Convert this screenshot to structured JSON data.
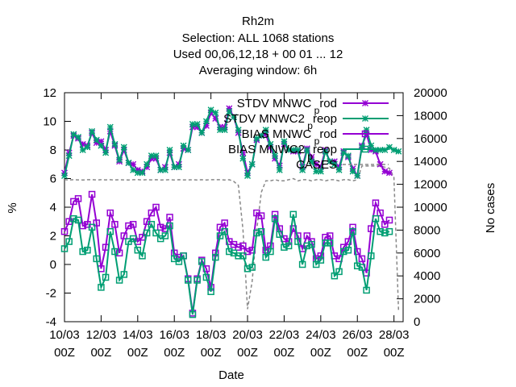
{
  "chart_data": {
    "type": "line",
    "title_lines": [
      "Rh2m",
      "Selection: ALL    1068 stations",
      "Used  00,06,12,18 + 00 01 ... 12",
      "Averaging window:  6h"
    ],
    "xlabel": "Date",
    "ylabel": "%",
    "y2label": "No cases",
    "xlim": [
      0,
      18.5
    ],
    "ylim": [
      -4,
      12
    ],
    "y2lim": [
      0,
      20000
    ],
    "x_ticks": [
      {
        "x": 0,
        "line1": "10/03",
        "line2": "00Z"
      },
      {
        "x": 2,
        "line1": "12/03",
        "line2": "00Z"
      },
      {
        "x": 4,
        "line1": "14/03",
        "line2": "00Z"
      },
      {
        "x": 6,
        "line1": "16/03",
        "line2": "00Z"
      },
      {
        "x": 8,
        "line1": "18/03",
        "line2": "00Z"
      },
      {
        "x": 10,
        "line1": "20/03",
        "line2": "00Z"
      },
      {
        "x": 12,
        "line1": "22/03",
        "line2": "00Z"
      },
      {
        "x": 14,
        "line1": "24/03",
        "line2": "00Z"
      },
      {
        "x": 16,
        "line1": "26/03",
        "line2": "00Z"
      },
      {
        "x": 18,
        "line1": "28/03",
        "line2": "00Z"
      }
    ],
    "y_ticks": [
      -4,
      -2,
      0,
      2,
      4,
      6,
      8,
      10,
      12
    ],
    "y2_ticks": [
      0,
      2000,
      4000,
      6000,
      8000,
      10000,
      12000,
      14000,
      16000,
      18000,
      20000
    ],
    "x_unit_note": "days since 10/03 00Z",
    "series": [
      {
        "name": "STDV MNWC_prod",
        "legend_main": "STDV MNWC",
        "legend_sub": "p",
        "legend_tail": "rod",
        "color": "#9400d3",
        "marker": "star",
        "axis": "y1",
        "x": [
          0,
          0.25,
          0.5,
          0.75,
          1,
          1.25,
          1.5,
          1.75,
          2,
          2.25,
          2.5,
          2.75,
          3,
          3.25,
          3.5,
          3.75,
          4,
          4.25,
          4.5,
          4.75,
          5,
          5.25,
          5.5,
          5.75,
          6,
          6.25,
          6.5,
          6.75,
          7,
          7.25,
          7.5,
          7.75,
          8,
          8.25,
          8.5,
          8.75,
          9,
          9.25,
          9.5,
          9.75,
          10,
          10.25,
          10.5,
          10.75,
          11,
          11.25,
          11.5,
          11.75,
          12,
          12.25,
          12.5,
          12.75,
          13,
          13.25,
          13.5,
          13.75,
          14,
          14.25,
          14.5,
          14.75,
          15,
          15.25,
          15.5,
          15.75,
          16,
          16.25,
          16.5,
          16.75,
          17,
          17.25,
          17.5,
          17.75,
          18,
          18.25,
          18.5,
          18.75
        ],
        "values": [
          6.4,
          7.8,
          9.0,
          8.8,
          8.4,
          8.3,
          9.2,
          8.5,
          8.6,
          8.0,
          9.3,
          8.3,
          7.2,
          8.0,
          7.1,
          7.0,
          6.6,
          6.5,
          6.8,
          7.4,
          7.4,
          6.6,
          6.8,
          7.8,
          6.8,
          7.0,
          8.1,
          8.0,
          9.6,
          9.6,
          9.2,
          9.7,
          10.6,
          10.2,
          9.6,
          9.6,
          10.9,
          10.3,
          9.2,
          7.8,
          6.4,
          7.0,
          8.7,
          9.0,
          9.1,
          8.2,
          7.4,
          6.9,
          8.4,
          8.0,
          7.9,
          7.9,
          6.8,
          8.1,
          7.5,
          7.0,
          6.8,
          8.0,
          7.2,
          7.2,
          6.8,
          7.9,
          7.5,
          6.7,
          6.2,
          8.3,
          9.1,
          8.0,
          7.9,
          7.0,
          6.5,
          6.4,
          null,
          null,
          null,
          null
        ]
      },
      {
        "name": "STDV MNWC2_preop",
        "legend_main": "STDV MNWC2",
        "legend_sub": "p",
        "legend_tail": "reop",
        "color": "#009e73",
        "marker": "star",
        "axis": "y1",
        "x": [
          0,
          0.25,
          0.5,
          0.75,
          1,
          1.25,
          1.5,
          1.75,
          2,
          2.25,
          2.5,
          2.75,
          3,
          3.25,
          3.5,
          3.75,
          4,
          4.25,
          4.5,
          4.75,
          5,
          5.25,
          5.5,
          5.75,
          6,
          6.25,
          6.5,
          6.75,
          7,
          7.25,
          7.5,
          7.75,
          8,
          8.25,
          8.5,
          8.75,
          9,
          9.25,
          9.5,
          9.75,
          10,
          10.25,
          10.5,
          10.75,
          11,
          11.25,
          11.5,
          11.75,
          12,
          12.25,
          12.5,
          12.75,
          13,
          13.25,
          13.5,
          13.75,
          14,
          14.25,
          14.5,
          14.75,
          15,
          15.25,
          15.5,
          15.75,
          16,
          16.25,
          16.5,
          16.75,
          17,
          17.25,
          17.5,
          17.75,
          18,
          18.25,
          18.5,
          18.75
        ],
        "values": [
          6.2,
          7.6,
          9.1,
          8.9,
          8.0,
          8.2,
          9.3,
          8.7,
          8.3,
          7.8,
          9.6,
          8.4,
          7.3,
          8.2,
          7.1,
          6.6,
          6.4,
          6.4,
          7.0,
          7.6,
          7.6,
          6.6,
          6.6,
          8.0,
          6.8,
          6.8,
          8.3,
          8.0,
          9.8,
          9.8,
          9.2,
          10.0,
          10.8,
          10.6,
          9.4,
          9.4,
          10.7,
          10.3,
          9.4,
          7.4,
          6.2,
          7.0,
          8.8,
          9.0,
          9.4,
          8.4,
          7.6,
          6.6,
          8.6,
          8.0,
          8.0,
          8.0,
          6.6,
          8.0,
          7.2,
          6.5,
          6.5,
          7.9,
          7.2,
          7.0,
          6.6,
          7.8,
          7.6,
          6.5,
          6.2,
          8.2,
          9.4,
          8.3,
          8.0,
          8.0,
          8.0,
          8.2,
          8.0,
          7.9,
          null,
          null
        ]
      },
      {
        "name": "BIAS MNWC_prod",
        "legend_main": "BIAS MNWC",
        "legend_sub": "p",
        "legend_tail": "rod",
        "color": "#9400d3",
        "marker": "square",
        "axis": "y1",
        "x": [
          0,
          0.25,
          0.5,
          0.75,
          1,
          1.25,
          1.5,
          1.75,
          2,
          2.25,
          2.5,
          2.75,
          3,
          3.25,
          3.5,
          3.75,
          4,
          4.25,
          4.5,
          4.75,
          5,
          5.25,
          5.5,
          5.75,
          6,
          6.25,
          6.5,
          6.75,
          7,
          7.25,
          7.5,
          7.75,
          8,
          8.25,
          8.5,
          8.75,
          9,
          9.25,
          9.5,
          9.75,
          10,
          10.25,
          10.5,
          10.75,
          11,
          11.25,
          11.5,
          11.75,
          12,
          12.25,
          12.5,
          12.75,
          13,
          13.25,
          13.5,
          13.75,
          14,
          14.25,
          14.5,
          14.75,
          15,
          15.25,
          15.5,
          15.75,
          16,
          16.25,
          16.5,
          16.75,
          17,
          17.25,
          17.5,
          17.75,
          18,
          18.25,
          18.5,
          18.75
        ],
        "values": [
          2.3,
          3.0,
          4.4,
          4.6,
          2.7,
          2.8,
          4.9,
          2.9,
          -0.3,
          1.2,
          3.6,
          2.8,
          0.8,
          2.0,
          2.7,
          2.8,
          1.6,
          1.9,
          3.0,
          3.6,
          4.0,
          2.6,
          2.5,
          3.3,
          0.8,
          0.5,
          0.6,
          -1.0,
          -3.4,
          -1.0,
          0.3,
          -0.3,
          -1.6,
          0.8,
          2.6,
          2.9,
          1.6,
          1.4,
          1.2,
          1.3,
          0.9,
          1.0,
          3.6,
          3.4,
          1.0,
          1.3,
          3.5,
          2.5,
          1.8,
          1.6,
          2.5,
          2.0,
          1.1,
          2.0,
          1.6,
          0.4,
          0.6,
          1.9,
          2.0,
          0.6,
          0.4,
          1.2,
          1.6,
          2.6,
          0.9,
          0.4,
          -0.6,
          2.5,
          4.3,
          3.6,
          2.8,
          3.1,
          null,
          null,
          null,
          null
        ]
      },
      {
        "name": "BIAS MNWC2_preop",
        "legend_main": "BIAS MNWC2",
        "legend_sub": "p",
        "legend_tail": "reop",
        "color": "#009e73",
        "marker": "square",
        "axis": "y1",
        "x": [
          0,
          0.25,
          0.5,
          0.75,
          1,
          1.25,
          1.5,
          1.75,
          2,
          2.25,
          2.5,
          2.75,
          3,
          3.25,
          3.5,
          3.75,
          4,
          4.25,
          4.5,
          4.75,
          5,
          5.25,
          5.5,
          5.75,
          6,
          6.25,
          6.5,
          6.75,
          7,
          7.25,
          7.5,
          7.75,
          8,
          8.25,
          8.5,
          8.75,
          9,
          9.25,
          9.5,
          9.75,
          10,
          10.25,
          10.5,
          10.75,
          11,
          11.25,
          11.5,
          11.75,
          12,
          12.25,
          12.5,
          12.75,
          13,
          13.25,
          13.5,
          13.75,
          14,
          14.25,
          14.5,
          14.75,
          15,
          15.25,
          15.5,
          15.75,
          16,
          16.25,
          16.5,
          16.75,
          17,
          17.25,
          17.5,
          17.75,
          18,
          18.25,
          18.5,
          18.75
        ],
        "values": [
          1.1,
          1.6,
          3.2,
          3.1,
          0.9,
          1.0,
          2.6,
          0.4,
          -1.6,
          -0.9,
          2.3,
          0.9,
          -1.1,
          -0.7,
          1.6,
          1.8,
          1.0,
          0.6,
          2.2,
          2.8,
          2.2,
          1.8,
          2.0,
          2.7,
          0.4,
          0.2,
          0.6,
          -1.1,
          -3.5,
          -1.1,
          0.2,
          -0.9,
          -1.9,
          0.5,
          2.0,
          2.3,
          0.9,
          0.8,
          0.6,
          0.6,
          -0.3,
          -0.2,
          2.2,
          2.3,
          0.5,
          0.9,
          3.2,
          2.1,
          1.2,
          1.3,
          3.5,
          1.6,
          0.0,
          1.3,
          1.4,
          0.0,
          0.3,
          1.5,
          1.5,
          -0.8,
          -0.5,
          0.9,
          1.0,
          2.3,
          -0.1,
          -0.2,
          -1.8,
          0.6,
          3.2,
          2.3,
          2.2,
          2.3,
          null,
          null,
          null,
          null
        ]
      },
      {
        "name": "CASES",
        "legend_main": "CASES",
        "color": "#888888",
        "marker": "none",
        "dashed": true,
        "axis": "y2",
        "x": [
          0,
          0.25,
          0.5,
          0.75,
          1,
          1.25,
          1.5,
          1.75,
          2,
          2.25,
          2.5,
          2.75,
          3,
          3.25,
          3.5,
          3.75,
          4,
          4.25,
          4.5,
          4.75,
          5,
          5.25,
          5.5,
          5.75,
          6,
          6.25,
          6.5,
          6.75,
          7,
          7.25,
          7.5,
          7.75,
          8,
          8.25,
          8.5,
          8.75,
          9,
          9.25,
          9.5,
          9.75,
          10,
          10.25,
          10.5,
          10.75,
          11,
          11.25,
          11.5,
          11.75,
          12,
          12.25,
          12.5,
          12.75,
          13,
          13.25,
          13.5,
          13.75,
          14,
          14.25,
          14.5,
          14.75,
          15,
          15.25,
          15.5,
          15.75,
          16,
          16.25,
          16.5,
          16.75,
          17,
          17.25,
          17.5,
          17.75,
          18,
          18.25,
          18.5,
          18.75
        ],
        "values": [
          12400,
          12380,
          12400,
          12390,
          12380,
          12400,
          12410,
          12380,
          12400,
          12390,
          12400,
          12380,
          12400,
          12390,
          12380,
          12400,
          12410,
          12380,
          12400,
          12390,
          12400,
          12380,
          12390,
          12400,
          12380,
          12400,
          12390,
          12380,
          12400,
          12380,
          12400,
          12380,
          12400,
          12400,
          12400,
          12380,
          12400,
          12250,
          11900,
          8000,
          1100,
          3500,
          8000,
          11300,
          12300,
          12300,
          12400,
          12300,
          12300,
          12400,
          12500,
          12300,
          12400,
          12400,
          12300,
          12400,
          12400,
          12300,
          12400,
          12400,
          12300,
          12400,
          12400,
          12300,
          12400,
          13600,
          13600,
          13600,
          13600,
          13600,
          13500,
          13400,
          12600,
          1000,
          null,
          null
        ]
      }
    ]
  }
}
